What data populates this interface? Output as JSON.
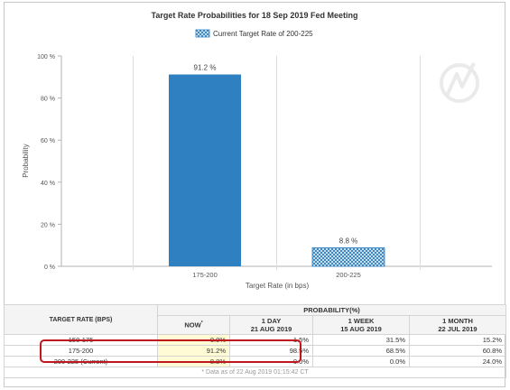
{
  "chart_data": {
    "type": "bar",
    "title": "Target Rate Probabilities for 18 Sep 2019 Fed Meeting",
    "legend": {
      "label": "Current Target Rate of 200-225",
      "placement": "top-center"
    },
    "categories": [
      "175-200",
      "200-225"
    ],
    "values": [
      91.2,
      8.8
    ],
    "data_labels": [
      "91.2 %",
      "8.8 %"
    ],
    "bar_styles": [
      "solid",
      "crosshatch"
    ],
    "xlabel": "Target Rate (in bps)",
    "ylabel": "Probability",
    "ylim": [
      0,
      100
    ],
    "yticks": [
      0,
      20,
      40,
      60,
      80,
      100
    ],
    "ytick_labels": [
      "0 %",
      "20 %",
      "40 %",
      "60 %",
      "80 %",
      "100 %"
    ],
    "grid": "vertical-category-dividers",
    "colors": {
      "bar": "#2e80c1",
      "hatch_bar": "#2e80c1",
      "axis": "#b3b3b3"
    }
  },
  "table": {
    "rate_header": "TARGET RATE (BPS)",
    "probability_header": "PROBABILITY(%)",
    "columns": [
      {
        "title": "NOW",
        "marker": "*",
        "date": ""
      },
      {
        "title": "1 DAY",
        "date": "21 AUG 2019"
      },
      {
        "title": "1 WEEK",
        "date": "15 AUG 2019"
      },
      {
        "title": "1 MONTH",
        "date": "22 JUL 2019"
      }
    ],
    "rows": [
      {
        "rate": "150-175",
        "values": [
          "0.0%",
          "1.5%",
          "31.5%",
          "15.2%"
        ]
      },
      {
        "rate": "175-200",
        "values": [
          "91.2%",
          "98.5%",
          "68.5%",
          "60.8%"
        ]
      },
      {
        "rate": "200-225 (Current)",
        "values": [
          "8.8%",
          "0.0%",
          "0.0%",
          "24.0%"
        ]
      }
    ],
    "footnote": "* Data as of 22 Aug 2019 01:15:42 CT"
  },
  "annotation": {
    "color": "#c0171d",
    "covers_rows": [
      "150-175",
      "175-200"
    ],
    "covers_columns": [
      "NOW",
      "1 DAY"
    ]
  }
}
